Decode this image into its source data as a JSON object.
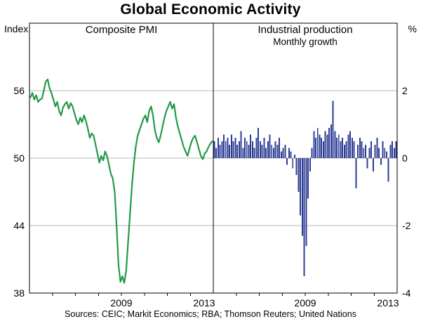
{
  "title": "Global Economic Activity",
  "left_axis_unit": "Index",
  "right_axis_unit": "%",
  "footer": {
    "sources": "Sources: CEIC; Markit Economics; RBA; Thomson Reuters; United Nations"
  },
  "style": {
    "grid_color": "#b8b8b8",
    "axis_color": "#000000"
  },
  "chart_data": [
    {
      "type": "line",
      "title": "Composite PMI",
      "color": "#229a48",
      "xlim": [
        2005,
        2013
      ],
      "ylim": [
        38,
        62
      ],
      "yticks": [
        38,
        44,
        50,
        56
      ],
      "xtick_labels": [
        "2009",
        "2013"
      ],
      "xtick_years": [
        2009,
        2013
      ],
      "x_start_year": 2005,
      "x_step_months": 1,
      "values": [
        55.4,
        55.8,
        55.2,
        55.6,
        55.0,
        55.2,
        55.3,
        56.0,
        56.8,
        57.0,
        56.2,
        55.8,
        55.2,
        54.6,
        55.0,
        54.2,
        53.8,
        54.5,
        54.8,
        55.0,
        54.4,
        54.9,
        54.6,
        54.0,
        53.4,
        53.0,
        53.6,
        53.2,
        53.8,
        53.3,
        52.6,
        51.8,
        52.2,
        52.0,
        51.2,
        50.4,
        49.6,
        50.2,
        49.8,
        50.6,
        50.2,
        49.4,
        48.6,
        48.2,
        47.0,
        44.0,
        40.5,
        39.0,
        39.5,
        38.9,
        40.0,
        42.5,
        45.0,
        47.5,
        49.5,
        51.0,
        52.0,
        52.5,
        53.0,
        53.5,
        53.8,
        53.2,
        54.2,
        54.6,
        53.8,
        52.5,
        51.8,
        51.4,
        52.0,
        52.8,
        53.6,
        54.2,
        54.6,
        55.0,
        54.4,
        54.8,
        53.6,
        52.8,
        52.2,
        51.6,
        51.0,
        50.6,
        50.2,
        50.8,
        51.4,
        51.8,
        52.0,
        51.4,
        50.8,
        50.2,
        49.9,
        50.4,
        50.6,
        51.0,
        51.3,
        51.5
      ]
    },
    {
      "type": "bar",
      "title": "Industrial production",
      "subtitle": "Monthly growth",
      "color": "#2c3c94",
      "xlim": [
        2005,
        2013
      ],
      "ylim": [
        -4,
        4
      ],
      "yticks": [
        -4,
        -2,
        0,
        2
      ],
      "xtick_labels": [
        "2009",
        "2013"
      ],
      "xtick_years": [
        2009,
        2013
      ],
      "x_start_year": 2005,
      "x_step_months": 1,
      "values": [
        0.5,
        0.3,
        0.6,
        0.4,
        0.5,
        0.7,
        0.5,
        0.6,
        0.4,
        0.7,
        0.5,
        0.6,
        0.4,
        0.5,
        0.8,
        0.3,
        0.6,
        0.5,
        0.4,
        0.7,
        0.5,
        0.3,
        0.6,
        0.9,
        0.5,
        0.4,
        0.6,
        0.3,
        0.5,
        0.7,
        0.4,
        0.3,
        0.5,
        0.4,
        0.6,
        0.2,
        0.3,
        0.4,
        -0.2,
        0.3,
        0.2,
        -0.3,
        0.1,
        -0.5,
        -1.0,
        -1.7,
        -2.3,
        -3.5,
        -2.6,
        -1.2,
        -0.4,
        0.3,
        0.8,
        0.6,
        0.9,
        0.7,
        0.6,
        0.5,
        0.8,
        0.7,
        0.9,
        1.0,
        1.7,
        0.8,
        0.6,
        0.7,
        0.5,
        0.6,
        0.4,
        0.5,
        0.7,
        0.8,
        0.6,
        0.5,
        -0.9,
        0.4,
        0.6,
        0.5,
        0.3,
        0.4,
        -0.3,
        0.3,
        0.5,
        -0.4,
        0.4,
        0.6,
        0.3,
        -0.2,
        0.5,
        0.3,
        0.2,
        -0.7,
        0.4,
        0.5,
        0.3,
        0.5
      ]
    }
  ]
}
